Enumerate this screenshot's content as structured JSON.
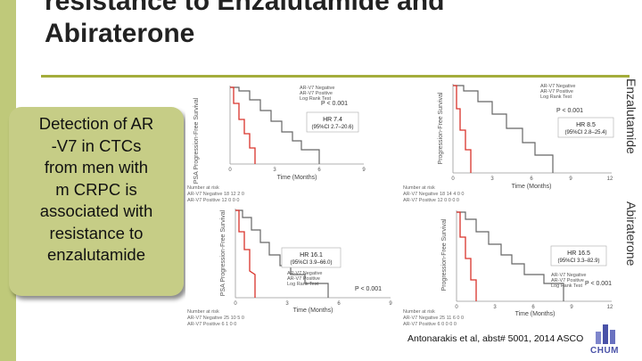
{
  "slide": {
    "title_line1": "resistance to Enzalutamide and",
    "title_line2": "Abiraterone",
    "callout": [
      "Detection of AR",
      "-V7 in CTCs",
      "from men with",
      "m CRPC is",
      "associated with",
      "resistance to",
      "enzalutamide"
    ],
    "label_enzalutamide": "Enzalutamide",
    "label_abiraterone": "Abiraterone",
    "citation": "Antonarakis et al, abst# 5001, 2014 ASCO",
    "logo_text": "CHUM"
  },
  "colors": {
    "accent_bar": "#bfc97a",
    "rule": "#a4ad3b",
    "callout_bg": "#c6cd86",
    "negative_line": "#666666",
    "positive_line": "#d9332b"
  },
  "panels": {
    "tl": {
      "legend": [
        "AR-V7 Negative",
        "AR-V7 Positive",
        "Log Rank Test"
      ],
      "p": "P < 0.001",
      "hr": "HR 7.4",
      "ci": "(95%CI 2.7–20.6)",
      "ylabel": "PSA Progression-Free Survival",
      "xlabel": "Time (Months)",
      "ticks": [
        "0",
        "3",
        "6",
        "9"
      ],
      "risk_title": "Number at risk",
      "risk_rows": [
        "AR-V7 Negative  18   12   2   0",
        "AR-V7 Positive  12    0   0   0"
      ]
    },
    "tr": {
      "legend": [
        "AR-V7 Negative",
        "AR-V7 Positive",
        "Log Rank Test"
      ],
      "p": "P < 0.001",
      "hr": "HR 8.5",
      "ci": "(95%CI 2.8–25.4)",
      "ylabel": "Progression-Free Survival",
      "xlabel": "Time (Months)",
      "ticks": [
        "0",
        "3",
        "6",
        "9",
        "12"
      ],
      "risk_title": "Number at risk",
      "risk_rows": [
        "AR-V7 Negative  18   14   4   0   0",
        "AR-V7 Positive  12    0   0   0   0"
      ]
    },
    "bl": {
      "legend": [
        "AR-V7 Negative",
        "AR-V7 Positive",
        "Log Rank Test"
      ],
      "p": "P < 0.001",
      "hr": "HR 16.1",
      "ci": "(95%CI 3.9–66.0)",
      "ylabel": "PSA Progression-Free Survival",
      "xlabel": "Time (Months)",
      "ticks": [
        "0",
        "3",
        "6",
        "9"
      ],
      "risk_title": "Number at risk",
      "risk_rows": [
        "AR-V7 Negative  25   10   5   0",
        "AR-V7 Positive   6    1   0   0"
      ]
    },
    "br": {
      "legend": [
        "AR-V7 Negative",
        "AR-V7 Positive",
        "Log Rank Test"
      ],
      "p": "P < 0.001",
      "hr": "HR 16.5",
      "ci": "(95%CI 3.3–82.9)",
      "ylabel": "Progression-Free Survival",
      "xlabel": "Time (Months)",
      "ticks": [
        "0",
        "3",
        "6",
        "9",
        "12"
      ],
      "risk_title": "Number at risk",
      "risk_rows": [
        "AR-V7 Negative  25   11   6   0   0",
        "AR-V7 Positive   6    0   0   0   0"
      ]
    }
  }
}
